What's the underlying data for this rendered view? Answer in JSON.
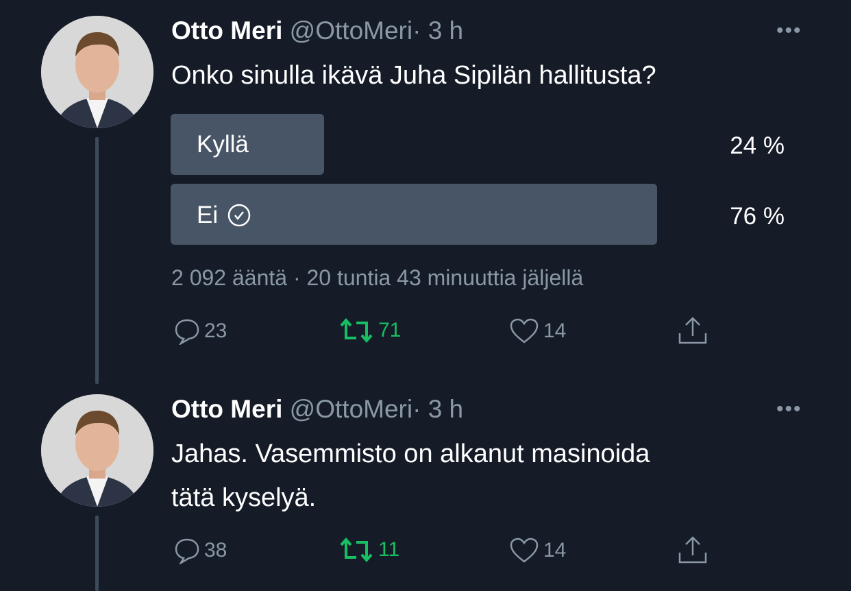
{
  "tweets": [
    {
      "name": "Otto Meri",
      "handle": "@OttoMeri",
      "time": "· 3 h",
      "text": "Onko sinulla ikävä Juha Sipilän hallitusta?",
      "poll": {
        "options": [
          {
            "label": "Kyllä",
            "percent_text": "24 %",
            "percent": 24,
            "selected": false
          },
          {
            "label": "Ei",
            "percent_text": "76 %",
            "percent": 76,
            "selected": true
          }
        ],
        "meta": "2 092 ääntä · 20 tuntia 43 minuuttia jäljellä"
      },
      "replies": "23",
      "retweets": "71",
      "likes": "14"
    },
    {
      "name": "Otto Meri",
      "handle": "@OttoMeri",
      "time": "· 3 h",
      "text_line1": "Jahas. Vasemmisto on alkanut masinoida",
      "text_line2": "tätä kyselyä.",
      "replies": "38",
      "retweets": "11",
      "likes": "14"
    }
  ],
  "more_label": "•••",
  "colors": {
    "background": "#151c28",
    "poll_bar": "#475566",
    "secondary_text": "#8a98a6",
    "retweet_active": "#17bf63"
  }
}
